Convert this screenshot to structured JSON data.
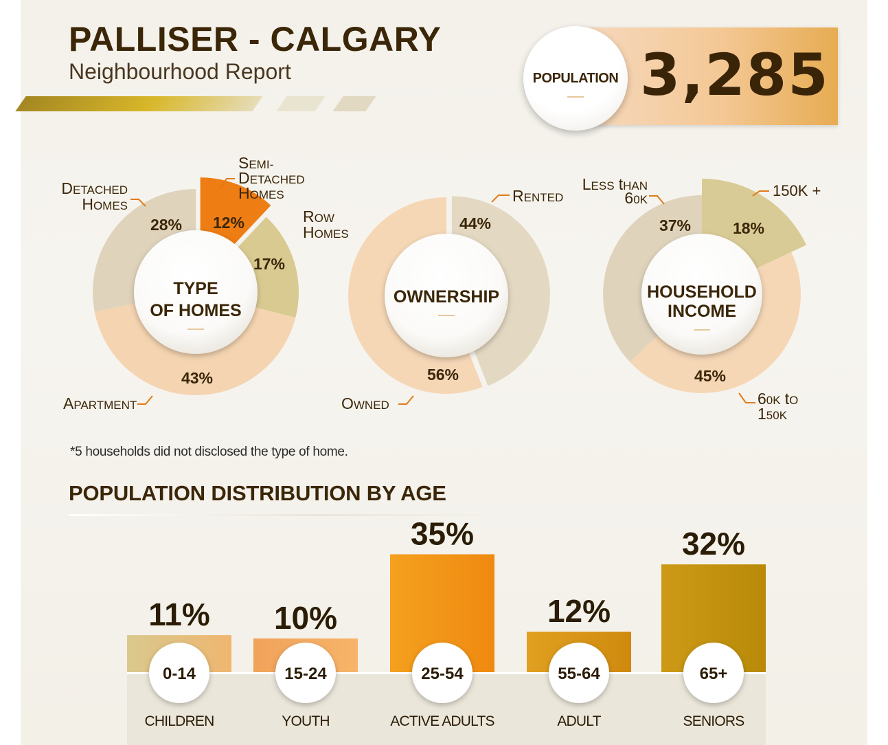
{
  "header": {
    "title": "PALLISER - CALGARY",
    "subtitle": "Neighbourhood Report"
  },
  "population": {
    "label": "POPULATION",
    "value": "3,285"
  },
  "colors": {
    "dark_text": "#3b2608",
    "accent_orange": "#ee7d13",
    "beige": "#dfd3bc",
    "peach": "#f4d4b1",
    "olive": "#d9ca91",
    "gold": "#c79612"
  },
  "footnote": "*5 households did not disclosed the type of home.",
  "age_section_title": "POPULATION DISTRIBUTION BY AGE",
  "chart_data": [
    {
      "type": "pie",
      "center_label": [
        "TYPE",
        "OF HOMES"
      ],
      "slices": [
        {
          "label": [
            "Semi-",
            "Detached",
            "Homes"
          ],
          "percent_label": "12%",
          "value": 12,
          "color": "#ee7d13"
        },
        {
          "label": [
            "Row",
            "Homes"
          ],
          "percent_label": "17%",
          "value": 17,
          "color": "#d9ca91"
        },
        {
          "label": [
            "Apartment"
          ],
          "percent_label": "43%",
          "value": 43,
          "color": "#f4d4b1"
        },
        {
          "label": [
            "Detached",
            "Homes"
          ],
          "percent_label": "28%",
          "value": 28,
          "color": "#dfd3bc"
        }
      ]
    },
    {
      "type": "pie",
      "center_label": [
        "OWNERSHIP"
      ],
      "slices": [
        {
          "label": [
            "Rented"
          ],
          "percent_label": "44%",
          "value": 44,
          "color": "#e3d8c1"
        },
        {
          "label": [
            "Owned"
          ],
          "percent_label": "56%",
          "value": 56,
          "color": "#f5d7b6"
        }
      ]
    },
    {
      "type": "pie",
      "center_label": [
        "HOUSEHOLD",
        "INCOME"
      ],
      "slices": [
        {
          "label": [
            "150K +"
          ],
          "percent_label": "18%",
          "value": 18,
          "color": "#d9cb95"
        },
        {
          "label": [
            "60K to",
            "150K"
          ],
          "percent_label": "45%",
          "value": 45,
          "color": "#f5d7b6"
        },
        {
          "label": [
            "Less than",
            "60K"
          ],
          "percent_label": "37%",
          "value": 37,
          "color": "#dfd3bc"
        }
      ]
    },
    {
      "type": "bar",
      "title": "POPULATION DISTRIBUTION BY AGE",
      "categories": [
        "0-14",
        "15-24",
        "25-54",
        "55-64",
        "65+"
      ],
      "category_names": [
        "CHILDREN",
        "YOUTH",
        "ACTIVE ADULTS",
        "ADULT",
        "SENIORS"
      ],
      "values": [
        11,
        10,
        35,
        12,
        32
      ],
      "value_labels": [
        "11%",
        "10%",
        "35%",
        "12%",
        "32%"
      ],
      "colors": [
        [
          "#d9c98d",
          "#efb670"
        ],
        [
          "#f1a25a",
          "#f6b56a"
        ],
        [
          "#f5a01f",
          "#ef8a10"
        ],
        [
          "#e1a020",
          "#cf8a0e"
        ],
        [
          "#cd9a16",
          "#b88a08"
        ]
      ]
    }
  ]
}
